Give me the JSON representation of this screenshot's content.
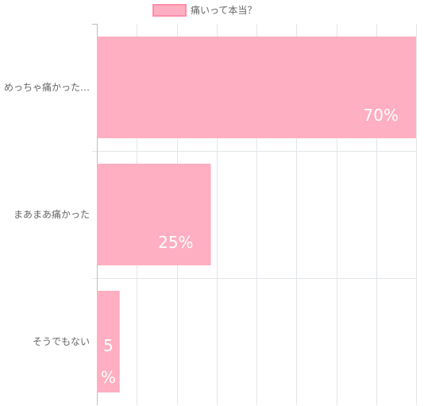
{
  "chart_data": {
    "type": "bar",
    "orientation": "horizontal",
    "title": "",
    "xlabel": "",
    "ylabel": "",
    "categories": [
      "めっちゃ痛かった…",
      "まあまあ痛かった",
      "そうでもない"
    ],
    "series": [
      {
        "name": "痛いって本当？",
        "values": [
          70,
          25,
          5
        ],
        "color": "#ffafc1",
        "border_color": "#ff8fa8"
      }
    ],
    "data_labels": [
      "70%",
      "25%",
      "5%"
    ],
    "xlim": [
      0,
      70
    ],
    "x_tick_step": 8.75,
    "grid": true,
    "legend_position": "top",
    "colors": {
      "grid": "#e2e6ea",
      "axis": "#bfbfbf",
      "text": "#666666",
      "label": "#ffffff"
    }
  }
}
